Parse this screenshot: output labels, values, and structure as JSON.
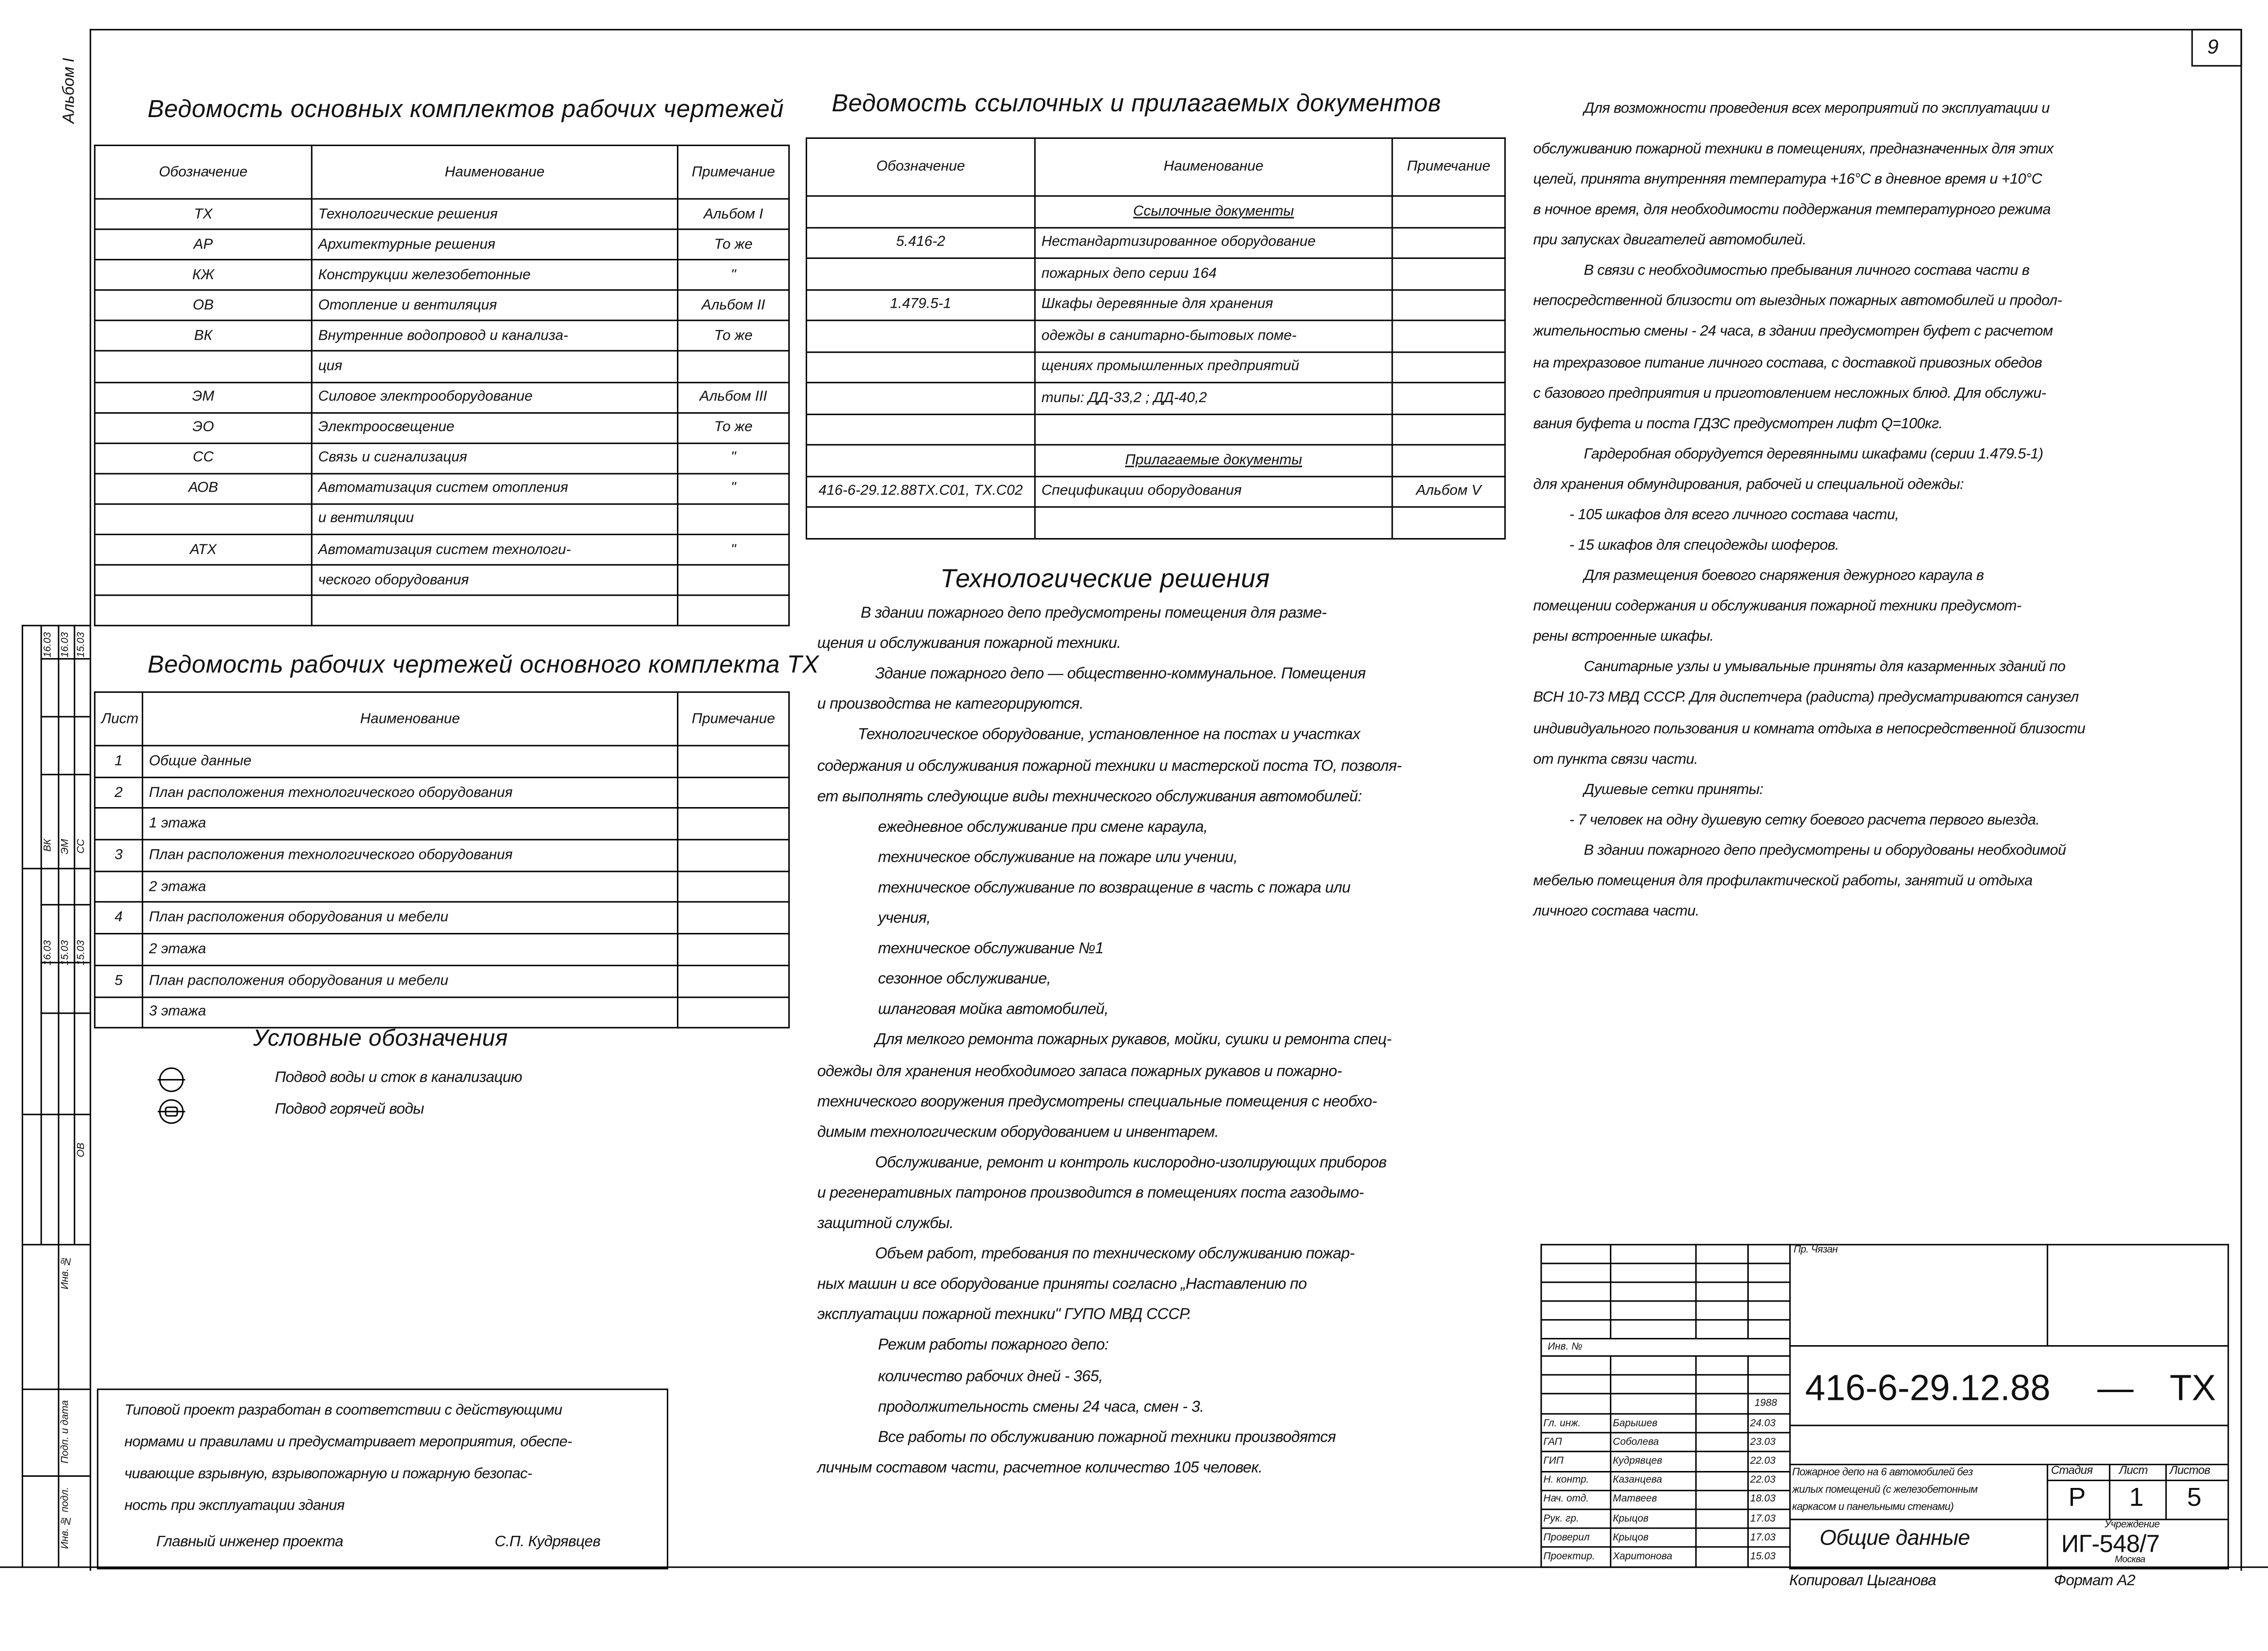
{
  "sheet_number": "9",
  "album_label": "Альбом I",
  "table1": {
    "title": "Ведомость основных комплектов рабочих чертежей",
    "headers": [
      "Обозначение",
      "Наименование",
      "Примечание"
    ],
    "rows": [
      [
        "ТХ",
        "Технологические решения",
        "Альбом I"
      ],
      [
        "АР",
        "Архитектурные решения",
        "То же"
      ],
      [
        "КЖ",
        "Конструкции железобетонные",
        "\""
      ],
      [
        "ОВ",
        "Отопление и вентиляция",
        "Альбом II"
      ],
      [
        "ВК",
        "Внутренние водопровод и канализа-",
        "То же"
      ],
      [
        "",
        "ция",
        ""
      ],
      [
        "ЭМ",
        "Силовое электрооборудование",
        "Альбом III"
      ],
      [
        "ЭО",
        "Электроосвещение",
        "То же"
      ],
      [
        "СС",
        "Связь и сигнализация",
        "\""
      ],
      [
        "АОВ",
        "Автоматизация систем отопления",
        "\""
      ],
      [
        "",
        "и вентиляции",
        ""
      ],
      [
        "АТХ",
        "Автоматизация систем технологи-",
        "\""
      ],
      [
        "",
        "ческого оборудования",
        ""
      ],
      [
        "",
        "",
        ""
      ]
    ]
  },
  "table2": {
    "title": "Ведомость ссылочных и прилагаемых документов",
    "headers": [
      "Обозначение",
      "Наименование",
      "Примечание"
    ],
    "rows": [
      [
        "",
        "Ссылочные документы",
        ""
      ],
      [
        "5.416-2",
        "Нестандартизированное оборудование",
        ""
      ],
      [
        "",
        "пожарных депо серии 164",
        ""
      ],
      [
        "1.479.5-1",
        "Шкафы деревянные для хранения",
        ""
      ],
      [
        "",
        "одежды в санитарно-бытовых поме-",
        ""
      ],
      [
        "",
        "щениях промышленных предприятий",
        ""
      ],
      [
        "",
        "типы: ДД-33,2 ; ДД-40,2",
        ""
      ],
      [
        "",
        "",
        ""
      ],
      [
        "",
        "Прилагаемые документы",
        ""
      ],
      [
        "416-6-29.12.88ТХ.С01, ТХ.С02",
        "Спецификации оборудования",
        "Альбом V"
      ],
      [
        "",
        "",
        ""
      ]
    ]
  },
  "table3": {
    "title": "Ведомость рабочих чертежей основного комплекта ТХ",
    "headers": [
      "Лист",
      "Наименование",
      "Примечание"
    ],
    "rows": [
      [
        "1",
        "Общие данные",
        ""
      ],
      [
        "2",
        "План расположения технологического оборудования",
        ""
      ],
      [
        "",
        "1 этажа",
        ""
      ],
      [
        "3",
        "План расположения технологического оборудования",
        ""
      ],
      [
        "",
        "2 этажа",
        ""
      ],
      [
        "4",
        "План расположения оборудования и мебели",
        ""
      ],
      [
        "",
        "2 этажа",
        ""
      ],
      [
        "5",
        "План расположения оборудования и мебели",
        ""
      ],
      [
        "",
        "3 этажа",
        ""
      ]
    ]
  },
  "legend": {
    "title": "Условные обозначения",
    "items": [
      {
        "icon": "water-supply-drain-symbol",
        "label": "Подвод воды и сток в канализацию"
      },
      {
        "icon": "hot-water-symbol",
        "label": "Подвод горячей воды"
      }
    ]
  },
  "tech": {
    "title": "Технологические решения",
    "lines": [
      "В здании пожарного депо предусмотрены помещения для разме-",
      "щения и обслуживания пожарной техники.",
      "Здание пожарного депо — общественно-коммунальное. Помещения",
      "и производства не категорируются.",
      "Технологическое оборудование, установленное на постах и участках",
      "содержания и обслуживания пожарной техники и мастерской поста ТО, позволя-",
      "ет выполнять следующие виды технического обслуживания автомобилей:",
      "ежедневное обслуживание при смене караула,",
      "техническое обслуживание на пожаре или учении,",
      "техническое обслуживание по возвращение в часть с пожара или",
      "учения,",
      "техническое обслуживание №1",
      "сезонное обслуживание,",
      "шланговая мойка автомобилей,",
      "Для мелкого ремонта пожарных рукавов, мойки, сушки и ремонта спец-",
      "одежды для хранения необходимого запаса пожарных рукавов и пожарно-",
      "технического вооружения предусмотрены специальные помещения с необхо-",
      "димым технологическим оборудованием и инвентарем.",
      "Обслуживание, ремонт и контроль кислородно-изолирующих приборов",
      "и регенеративных патронов производится в помещениях поста газодымо-",
      "защитной службы.",
      "Объем работ, требования по техническому обслуживанию пожар-",
      "ных машин и все оборудование приняты согласно „Наставлению по",
      "эксплуатации пожарной техники\" ГУПО МВД СССР.",
      "Режим работы пожарного депо:",
      "количество рабочих дней - 365,",
      "продолжительность смены 24 часа, смен - 3.",
      "Все работы по обслуживанию пожарной техники производятся",
      "личным составом части, расчетное количество 105 человек."
    ]
  },
  "right_text": {
    "lines": [
      "Для возможности проведения всех мероприятий по эксплуатации и",
      "обслуживанию пожарной техники в помещениях, предназначенных для этих",
      "целей, принята внутренняя температура +16°С в дневное время и +10°С",
      "в ночное время, для необходимости поддержания температурного режима",
      "при запусках двигателей автомобилей.",
      "В связи с необходимостью пребывания личного состава части в",
      "непосредственной близости от выездных пожарных автомобилей и продол-",
      "жительностью смены - 24 часа, в здании предусмотрен буфет с расчетом",
      "на трехразовое питание личного состава, с доставкой привозных обедов",
      "с базового предприятия и приготовлением несложных блюд. Для обслужи-",
      "вания буфета и поста ГДЗС предусмотрен лифт Q=100кг.",
      "Гардеробная оборудуется деревянными шкафами (серии 1.479.5-1)",
      "для хранения обмундирования, рабочей и специальной одежды:",
      "- 105 шкафов для всего личного состава части,",
      "- 15 шкафов для спецодежды шоферов.",
      "Для размещения боевого снаряжения дежурного караула в",
      "помещении содержания и обслуживания пожарной техники предусмот-",
      "рены встроенные шкафы.",
      "Санитарные узлы и умывальные приняты для казарменных зданий по",
      "ВСН 10-73 МВД СССР. Для диспетчера (радиста) предусматриваются санузел",
      "индивидуального пользования и комната отдыха в непосредственной близости",
      "от пункта связи части.",
      "Душевые сетки приняты:",
      "- 7 человек на одну душевую сетку боевого расчета первого выезда.",
      "В здании пожарного депо предусмотрены и оборудованы необходимой",
      "мебелью помещения для профилактической работы, занятий и отдыха",
      "личного состава части."
    ]
  },
  "note_box": {
    "lines": [
      "Типовой проект разработан в соответствии с действующими",
      "нормами и правилами и предусматривает мероприятия, обеспе-",
      "чивающие взрывную, взрывопожарную и пожарную безопас-",
      "ность при эксплуатации здания"
    ],
    "signer_role": "Главный инженер проекта",
    "signer_name": "С.П. Кудрявцев"
  },
  "side_strip": {
    "inv_orig": "Инв. № подл.",
    "sign_date": "Подп. и дата",
    "inv": "Инв. №",
    "depts": [
      "ВК",
      "ЭМ",
      "СС",
      "ОВ"
    ],
    "dates": [
      "16.03",
      "16.03",
      "15.03",
      "16.03",
      "15.03",
      "15.03"
    ]
  },
  "title_block": {
    "top_note": "Пр. Чязан",
    "inv_label": "Инв. №",
    "year": "1988",
    "signatures": [
      {
        "role": "Гл. инж.",
        "name": "Барышев",
        "date": "24.03"
      },
      {
        "role": "ГАП",
        "name": "Соболева",
        "date": "23.03"
      },
      {
        "role": "ГИП",
        "name": "Кудрявцев",
        "date": "22.03"
      },
      {
        "role": "Н. контр.",
        "name": "Казанцева",
        "date": "22.03"
      },
      {
        "role": "Нач. отд.",
        "name": "Матвеев",
        "date": "18.03"
      },
      {
        "role": "Рук. гр.",
        "name": "Крыцов",
        "date": "17.03"
      },
      {
        "role": "Проверил",
        "name": "Крыцов",
        "date": "17.03"
      },
      {
        "role": "Проектир.",
        "name": "Харитонова",
        "date": "15.03"
      }
    ],
    "code": "416-6-29.12.88",
    "dash": "—",
    "code_suffix": "ТХ",
    "description": [
      "Пожарное депо на 6 автомобилей без",
      "жилых помещений (с железобетонным",
      "каркасом и панельными стенами)"
    ],
    "stage_header": "Стадия",
    "sheet_header": "Лист",
    "sheets_header": "Листов",
    "stage": "Р",
    "sheet": "1",
    "sheets": "5",
    "drawing_title": "Общие данные",
    "org_label": "Учреждение",
    "org_code": "ИГ-548/7",
    "org_city": "Москва",
    "copied_by": "Копировал Цыганова",
    "format": "Формат А2"
  }
}
